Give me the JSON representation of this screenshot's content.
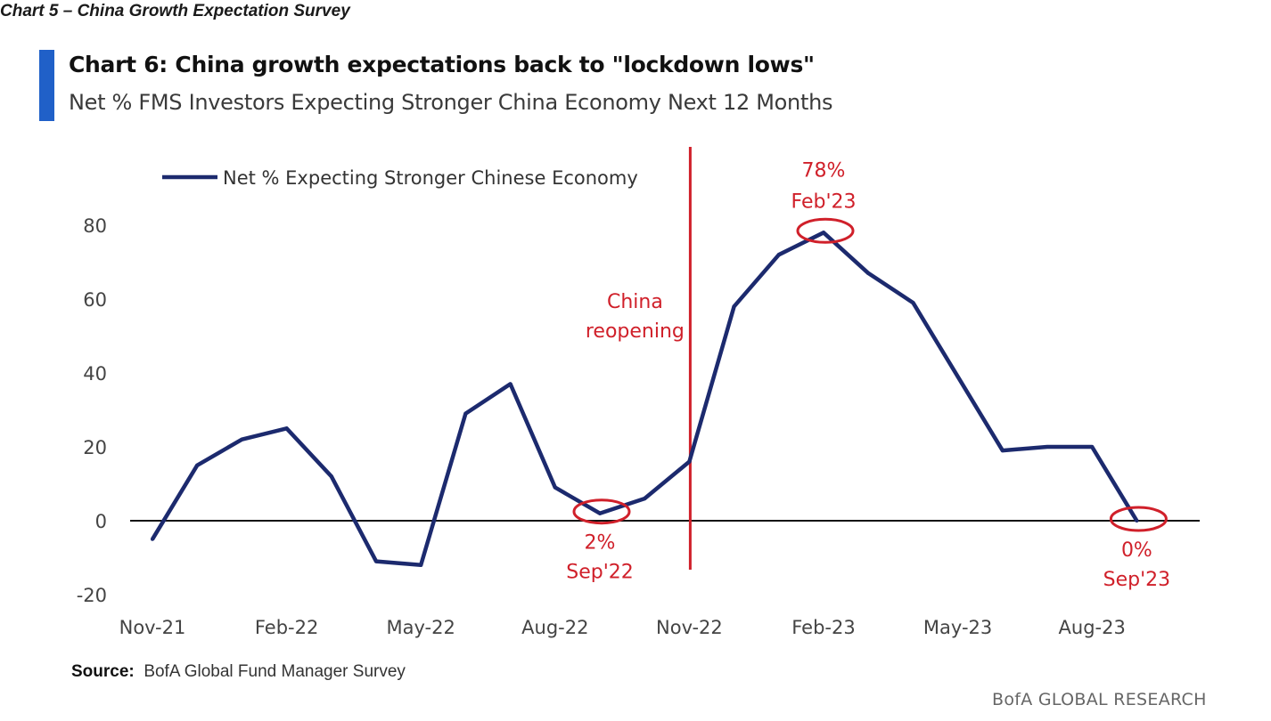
{
  "page": {
    "top_caption": "Chart 5 – China Growth Expectation Survey",
    "source_label": "Source:",
    "source_text": "BofA Global Fund Manager Survey",
    "footer_brand": "BofA GLOBAL RESEARCH"
  },
  "colors": {
    "accent_bar": "#2060c8",
    "series_line": "#1c2a6e",
    "annotation": "#d0202a",
    "zero_line": "#111111"
  },
  "chart_data": {
    "type": "line",
    "title": "Chart 6: China growth expectations back to \"lockdown lows\"",
    "subtitle": "Net % FMS Investors Expecting Stronger China Economy Next 12 Months",
    "xlabel": "",
    "ylabel": "",
    "ylim": [
      -20,
      80
    ],
    "yticks": [
      80,
      60,
      40,
      20,
      0,
      -20
    ],
    "xtick_labels": [
      "Nov-21",
      "Feb-22",
      "May-22",
      "Aug-22",
      "Nov-22",
      "Feb-23",
      "May-23",
      "Aug-23"
    ],
    "legend": {
      "position": "top-left"
    },
    "grid": false,
    "series": [
      {
        "name": "Net % Expecting Stronger Chinese Economy",
        "x": [
          "Nov-21",
          "Dec-21",
          "Jan-22",
          "Feb-22",
          "Mar-22",
          "Apr-22",
          "May-22",
          "Jun-22",
          "Jul-22",
          "Aug-22",
          "Sep-22",
          "Oct-22",
          "Nov-22",
          "Dec-22",
          "Jan-23",
          "Feb-23",
          "Mar-23",
          "Apr-23",
          "May-23",
          "Jun-23",
          "Jul-23",
          "Aug-23",
          "Sep-23"
        ],
        "values": [
          -5,
          15,
          22,
          25,
          12,
          -11,
          -12,
          29,
          37,
          9,
          2,
          6,
          16,
          58,
          72,
          78,
          67,
          59,
          39,
          19,
          20,
          20,
          0
        ]
      }
    ],
    "vertical_marker": {
      "x": "Nov-22",
      "label_line1": "China",
      "label_line2": "reopening"
    },
    "annotations": [
      {
        "x": "Feb-23",
        "value": 78,
        "label_value": "78%",
        "label_date": "Feb'23"
      },
      {
        "x": "Sep-22",
        "value": 2,
        "label_value": "2%",
        "label_date": "Sep'22"
      },
      {
        "x": "Sep-23",
        "value": 0,
        "label_value": "0%",
        "label_date": "Sep'23"
      }
    ]
  }
}
